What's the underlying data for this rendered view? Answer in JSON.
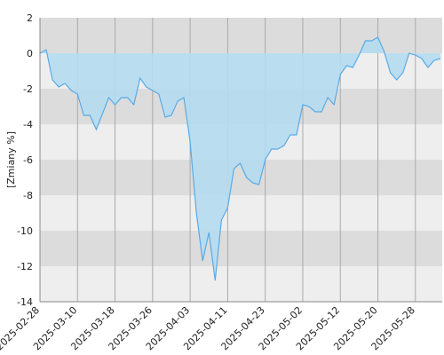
{
  "chart_data": {
    "type": "area",
    "y_label": "[Zmiany %]",
    "categories": [
      "2025-02-28",
      null,
      null,
      null,
      null,
      null,
      "2025-03-10",
      null,
      null,
      null,
      null,
      null,
      "2025-03-18",
      null,
      null,
      null,
      null,
      null,
      "2025-03-26",
      null,
      null,
      null,
      null,
      null,
      "2025-04-03",
      null,
      null,
      null,
      null,
      null,
      "2025-04-11",
      null,
      null,
      null,
      null,
      null,
      "2025-04-23",
      null,
      null,
      null,
      null,
      null,
      "2025-05-02",
      null,
      null,
      null,
      null,
      null,
      "2025-05-12",
      null,
      null,
      null,
      null,
      null,
      "2025-05-20",
      null,
      null,
      null,
      null,
      null,
      "2025-05-28",
      null,
      null,
      null,
      null
    ],
    "values": [
      0,
      0.2,
      -1.5,
      -1.9,
      -1.7,
      -2.1,
      -2.3,
      -3.5,
      -3.5,
      -4.3,
      -3.4,
      -2.5,
      -2.9,
      -2.5,
      -2.5,
      -2.9,
      -1.4,
      -1.9,
      -2.1,
      -2.3,
      -3.6,
      -3.5,
      -2.7,
      -2.5,
      -5,
      -9,
      -11.7,
      -10.1,
      -12.8,
      -9.4,
      -8.7,
      -6.5,
      -6.2,
      -7,
      -7.3,
      -7.4,
      -6,
      -5.4,
      -5.4,
      -5.2,
      -4.6,
      -4.6,
      -2.9,
      -3,
      -3.3,
      -3.3,
      -2.5,
      -2.9,
      -1.2,
      -0.7,
      -0.8,
      -0.1,
      0.7,
      0.7,
      0.9,
      0.1,
      -1.1,
      -1.5,
      -1.1,
      0,
      -0.1,
      -0.3,
      -0.8,
      -0.4,
      -0.3
    ],
    "color": "#5aaae6",
    "fill": "#b4dcf0",
    "ylim": [
      -14,
      2
    ],
    "yticks": [
      -14,
      -12,
      -10,
      -8,
      -6,
      -4,
      -2,
      0,
      2
    ],
    "grid": true
  }
}
